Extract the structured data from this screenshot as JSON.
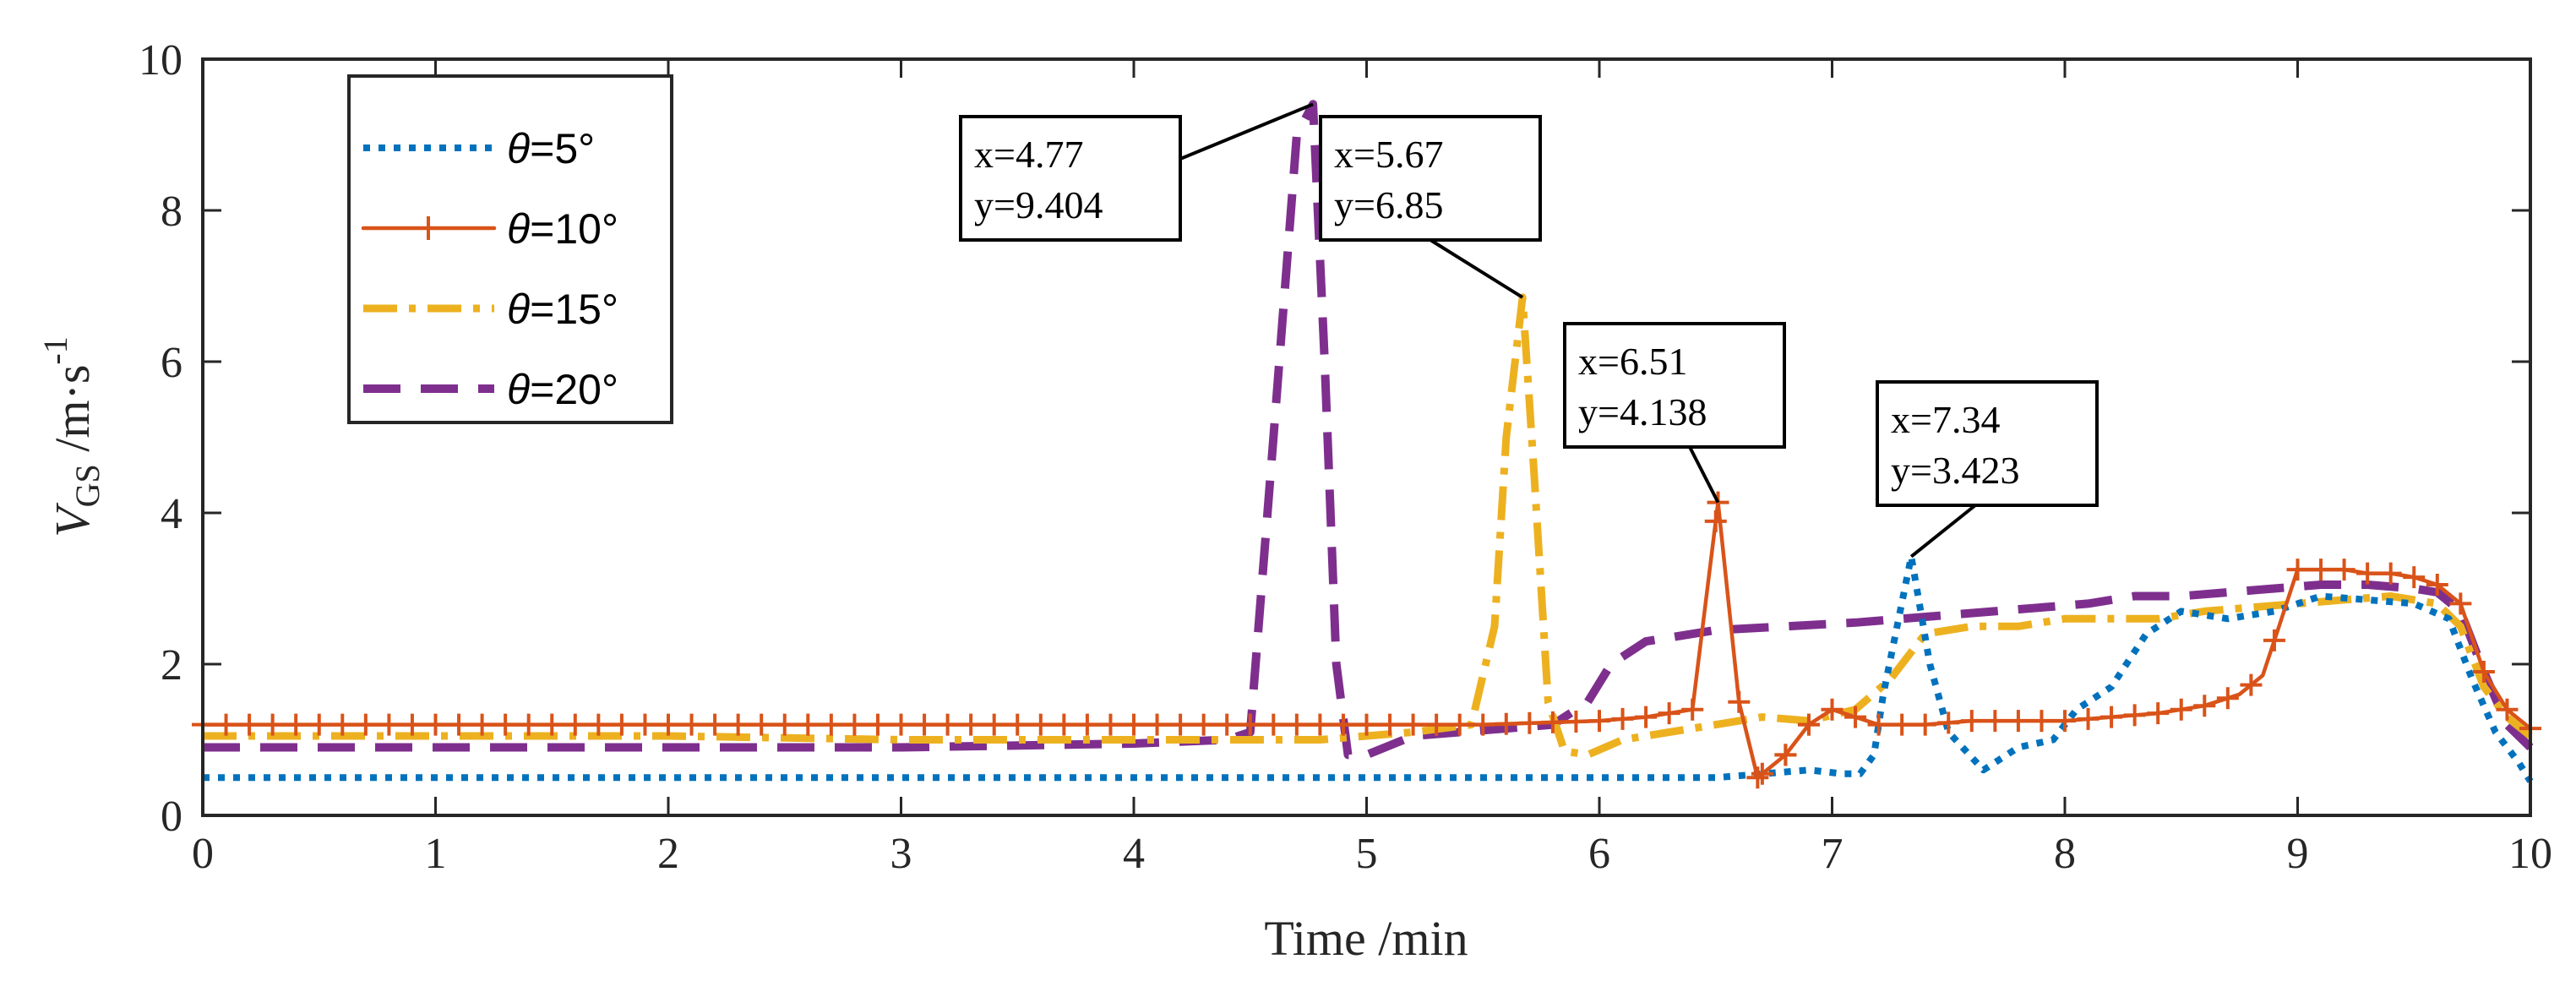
{
  "chart_data": {
    "type": "line",
    "title": "",
    "xlabel": "Time /min",
    "ylabel": {
      "main": "V",
      "sub": "GS",
      "unit": " /m·s",
      "sup": "-1"
    },
    "xlim": [
      0,
      10
    ],
    "ylim": [
      0,
      10
    ],
    "xticks": [
      0,
      1,
      2,
      3,
      4,
      5,
      6,
      7,
      8,
      9,
      10
    ],
    "yticks": [
      0,
      2,
      4,
      6,
      8,
      10
    ],
    "grid": false,
    "legend_position": "top-left",
    "series": [
      {
        "name": "θ=5°",
        "symbol": "θ",
        "label": "=5°",
        "color": "#0072BD",
        "style": "dotted",
        "x": [
          0,
          1,
          2,
          3,
          4,
          5,
          6,
          6.5,
          6.7,
          6.9,
          7.05,
          7.12,
          7.18,
          7.22,
          7.34,
          7.42,
          7.5,
          7.65,
          7.8,
          7.95,
          8.05,
          8.2,
          8.35,
          8.5,
          8.7,
          8.9,
          9.1,
          9.3,
          9.5,
          9.65,
          9.75,
          9.85,
          9.95,
          10
        ],
        "y": [
          0.5,
          0.5,
          0.5,
          0.5,
          0.5,
          0.5,
          0.5,
          0.5,
          0.55,
          0.6,
          0.55,
          0.55,
          0.8,
          1.6,
          3.423,
          2.0,
          1.1,
          0.6,
          0.9,
          1.0,
          1.4,
          1.7,
          2.4,
          2.7,
          2.6,
          2.7,
          2.9,
          2.85,
          2.8,
          2.6,
          1.8,
          1.1,
          0.7,
          0.45
        ]
      },
      {
        "name": "θ=10°",
        "symbol": "θ",
        "label": "=10°",
        "color": "#D95319",
        "style": "solid-plus",
        "x": [
          0,
          0.5,
          1,
          1.5,
          2,
          2.5,
          3,
          3.5,
          4,
          4.5,
          5,
          5.5,
          6,
          6.2,
          6.4,
          6.51,
          6.6,
          6.68,
          6.8,
          6.9,
          7.0,
          7.2,
          7.4,
          7.6,
          7.8,
          8.0,
          8.2,
          8.4,
          8.6,
          8.75,
          8.85,
          8.92,
          9.0,
          9.1,
          9.2,
          9.3,
          9.4,
          9.5,
          9.6,
          9.7,
          9.8,
          9.9,
          10
        ],
        "y": [
          1.2,
          1.2,
          1.2,
          1.2,
          1.2,
          1.2,
          1.2,
          1.2,
          1.2,
          1.2,
          1.2,
          1.2,
          1.25,
          1.3,
          1.4,
          4.138,
          1.5,
          0.5,
          0.8,
          1.2,
          1.4,
          1.2,
          1.2,
          1.25,
          1.25,
          1.25,
          1.3,
          1.35,
          1.45,
          1.6,
          1.85,
          2.5,
          3.25,
          3.25,
          3.25,
          3.2,
          3.2,
          3.15,
          3.05,
          2.8,
          1.9,
          1.4,
          1.15
        ]
      },
      {
        "name": "θ=15°",
        "symbol": "θ",
        "label": "=15°",
        "color": "#EDB120",
        "style": "dashdot",
        "x": [
          0,
          1,
          2,
          3,
          4,
          4.8,
          5.0,
          5.2,
          5.45,
          5.55,
          5.6,
          5.67,
          5.72,
          5.78,
          5.85,
          5.95,
          6.1,
          6.3,
          6.5,
          6.7,
          6.9,
          7.1,
          7.25,
          7.4,
          7.6,
          7.8,
          8.0,
          8.2,
          8.4,
          8.6,
          8.8,
          9.0,
          9.2,
          9.4,
          9.6,
          9.7,
          9.8,
          9.9,
          10
        ],
        "y": [
          1.05,
          1.05,
          1.05,
          1.0,
          1.0,
          1.0,
          1.05,
          1.1,
          1.2,
          2.5,
          5.0,
          6.85,
          4.5,
          1.5,
          0.85,
          0.8,
          1.0,
          1.1,
          1.2,
          1.3,
          1.25,
          1.4,
          1.8,
          2.4,
          2.5,
          2.5,
          2.6,
          2.6,
          2.6,
          2.7,
          2.75,
          2.8,
          2.85,
          2.9,
          2.8,
          2.5,
          1.7,
          1.3,
          1.05
        ]
      },
      {
        "name": "θ=20°",
        "symbol": "θ",
        "label": "=20°",
        "color": "#7E2F8E",
        "style": "dashed",
        "x": [
          0,
          1,
          2,
          3,
          4,
          4.4,
          4.5,
          4.6,
          4.7,
          4.77,
          4.82,
          4.87,
          4.92,
          5.0,
          5.2,
          5.4,
          5.6,
          5.8,
          5.95,
          6.05,
          6.2,
          6.5,
          6.8,
          7.1,
          7.3,
          7.5,
          7.7,
          7.9,
          8.1,
          8.3,
          8.5,
          8.7,
          8.9,
          9.1,
          9.3,
          9.5,
          9.6,
          9.7,
          9.8,
          9.9,
          10
        ],
        "y": [
          0.9,
          0.9,
          0.9,
          0.9,
          0.95,
          1.0,
          1.1,
          5.0,
          9.0,
          9.404,
          6.0,
          2.0,
          0.8,
          0.8,
          1.05,
          1.1,
          1.15,
          1.2,
          1.5,
          2.0,
          2.3,
          2.45,
          2.5,
          2.55,
          2.6,
          2.65,
          2.7,
          2.75,
          2.8,
          2.9,
          2.9,
          2.95,
          3.0,
          3.05,
          3.05,
          3.0,
          2.95,
          2.7,
          1.9,
          1.2,
          0.9
        ]
      }
    ],
    "annotations": [
      {
        "label_x": "x=4.77",
        "label_y": "y=9.404",
        "point": [
          4.77,
          9.404
        ],
        "series": "θ=20°"
      },
      {
        "label_x": "x=5.67",
        "label_y": "y=6.85",
        "point": [
          5.67,
          6.85
        ],
        "series": "θ=15°"
      },
      {
        "label_x": "x=6.51",
        "label_y": "y=4.138",
        "point": [
          6.51,
          4.138
        ],
        "series": "θ=10°"
      },
      {
        "label_x": "x=7.34",
        "label_y": "y=3.423",
        "point": [
          7.34,
          3.423
        ],
        "series": "θ=5°"
      }
    ]
  }
}
